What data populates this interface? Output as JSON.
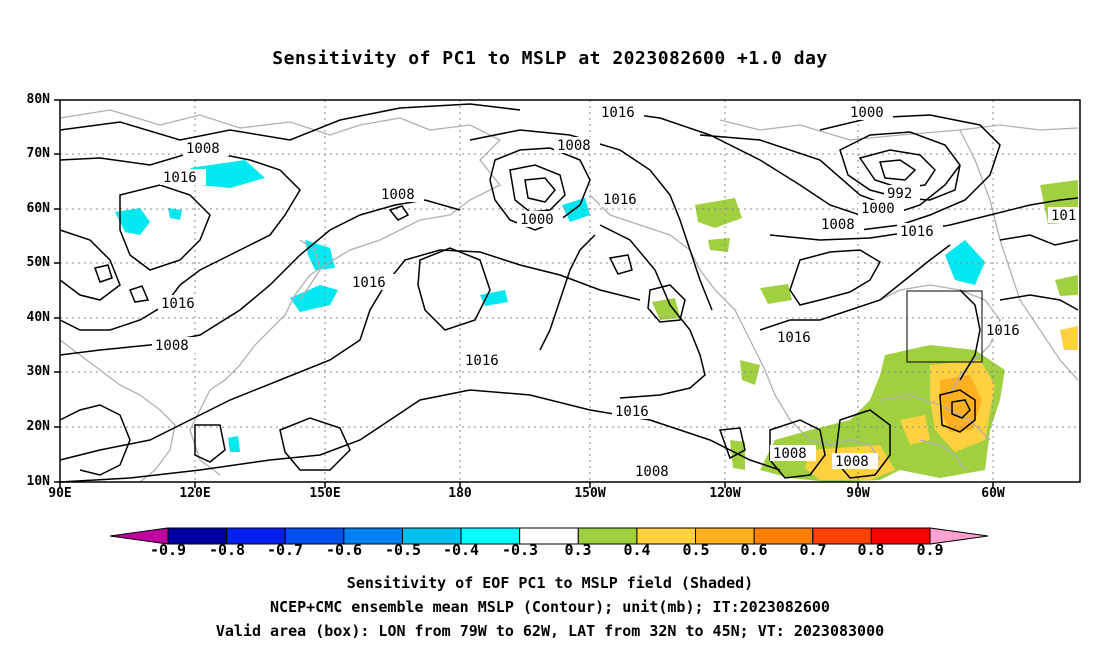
{
  "title": "Sensitivity of PC1 to MSLP at 2023082600 +1.0 day",
  "lat_labels": [
    "80N",
    "70N",
    "60N",
    "50N",
    "40N",
    "30N",
    "20N",
    "10N"
  ],
  "lon_labels": [
    "90E",
    "120E",
    "150E",
    "180",
    "150W",
    "120W",
    "90W",
    "60W"
  ],
  "contour_labels": [
    {
      "text": "1016"
    },
    {
      "text": "1000"
    },
    {
      "text": "1008"
    },
    {
      "text": "1008"
    },
    {
      "text": "1016"
    },
    {
      "text": "1008"
    },
    {
      "text": "992"
    },
    {
      "text": "1000"
    },
    {
      "text": "1000"
    },
    {
      "text": "1016"
    },
    {
      "text": "1008"
    },
    {
      "text": "1016"
    },
    {
      "text": "1016"
    },
    {
      "text": "1016"
    },
    {
      "text": "1008"
    },
    {
      "text": "1016"
    },
    {
      "text": "1016"
    },
    {
      "text": "1016"
    },
    {
      "text": "1016"
    },
    {
      "text": "1008"
    },
    {
      "text": "1008"
    },
    {
      "text": "1008"
    },
    {
      "text": "101"
    }
  ],
  "colorbar": {
    "labels": [
      "-0.9",
      "-0.8",
      "-0.7",
      "-0.6",
      "-0.5",
      "-0.4",
      "-0.3",
      "0.3",
      "0.4",
      "0.5",
      "0.6",
      "0.7",
      "0.8",
      "0.9"
    ],
    "colors": [
      "#0000a0",
      "#0020f0",
      "#0050f0",
      "#0080f0",
      "#00c0f0",
      "#00ffff",
      "#ffffff",
      "#a0d040",
      "#ffd040",
      "#ffb020",
      "#ff8000",
      "#ff4000",
      "#ff0000"
    ],
    "low_end_color": "#c000a0",
    "high_end_color": "#ffa0d0"
  },
  "captions": [
    "Sensitivity of EOF PC1 to MSLP field (Shaded)",
    "NCEP+CMC ensemble mean MSLP (Contour); unit(mb); IT:2023082600",
    "Valid area (box): LON from 79W to 62W, LAT from 32N to 45N; VT: 2023083000"
  ]
}
